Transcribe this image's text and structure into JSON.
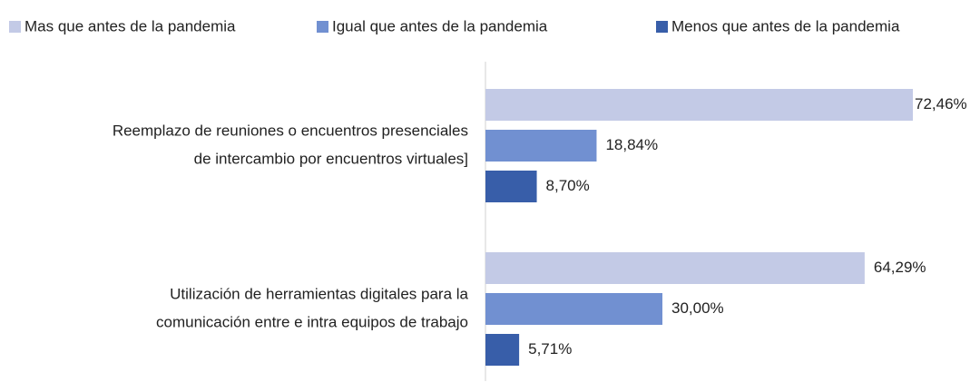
{
  "chart_data": {
    "type": "bar",
    "orientation": "horizontal",
    "categories": [
      [
        "Reemplazo de reuniones o encuentros presenciales",
        "de intercambio por encuentros virtuales]"
      ],
      [
        "Utilización de herramientas digitales para la",
        "comunicación entre e intra equipos de trabajo"
      ]
    ],
    "series": [
      {
        "name": "Mas que antes de la pandemia",
        "color": "#c3cae6",
        "values": [
          72.46,
          64.29
        ],
        "value_labels": [
          "72,46%",
          "64,29%"
        ]
      },
      {
        "name": "Igual que antes de la pandemia",
        "color": "#7190d1",
        "values": [
          18.84,
          30.0
        ],
        "value_labels": [
          "18,84%",
          "30,00%"
        ]
      },
      {
        "name": "Menos que antes de la pandemia",
        "color": "#385ea9",
        "values": [
          8.7,
          5.71
        ],
        "value_labels": [
          "8,70%",
          "5,71%"
        ]
      }
    ],
    "legend": "top"
  }
}
